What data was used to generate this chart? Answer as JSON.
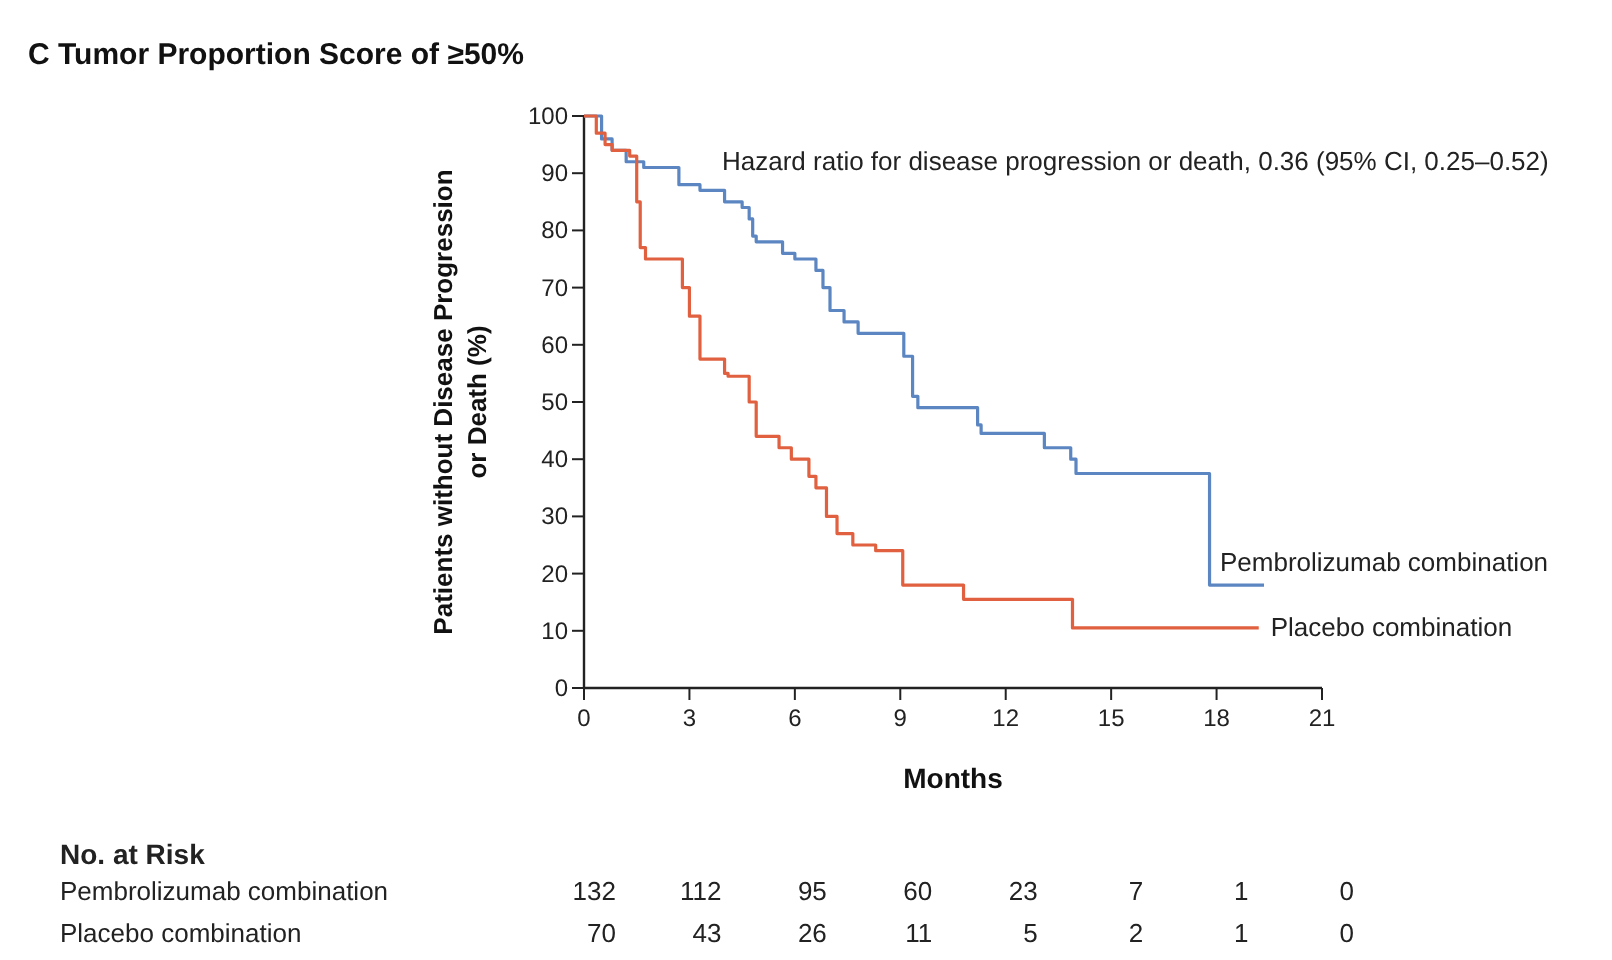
{
  "chart_data": {
    "type": "step",
    "title": "C  Tumor Proportion Score of ≥50%",
    "xlabel": "Months",
    "ylabel": "Patients without Disease Progression\nor Death (%)",
    "xlim": [
      0,
      21
    ],
    "xticks": [
      0,
      3,
      6,
      9,
      12,
      15,
      18,
      21
    ],
    "ylim": [
      0,
      100
    ],
    "yticks": [
      0,
      10,
      20,
      30,
      40,
      50,
      60,
      70,
      80,
      90,
      100
    ],
    "grid": false,
    "series": [
      {
        "name": "Pembrolizumab combination",
        "color": "#5b86c2",
        "x": [
          0,
          0.5,
          0.8,
          1.2,
          1.7,
          2.7,
          3.3,
          4.0,
          4.5,
          4.7,
          4.8,
          4.9,
          5.65,
          6.0,
          6.6,
          6.8,
          7.0,
          7.4,
          7.8,
          9.1,
          9.35,
          9.5,
          11.2,
          11.3,
          13.1,
          13.85,
          14.0,
          17.8,
          19.35
        ],
        "values": [
          100,
          96,
          94,
          92,
          91,
          88,
          87,
          85,
          84,
          82,
          79,
          78,
          76,
          75,
          73,
          70,
          66,
          64,
          62,
          58,
          51,
          49,
          46,
          44.5,
          42,
          40,
          37.5,
          18,
          18
        ]
      },
      {
        "name": "Placebo combination",
        "color": "#e0603f",
        "x": [
          0,
          0.35,
          0.6,
          0.8,
          1.3,
          1.5,
          1.6,
          1.75,
          2.8,
          3.0,
          3.3,
          4.0,
          4.1,
          4.7,
          4.9,
          5.55,
          5.9,
          6.4,
          6.6,
          6.9,
          7.2,
          7.65,
          8.3,
          9.07,
          10.8,
          13.9,
          19.2
        ],
        "values": [
          100,
          97,
          95,
          94,
          93,
          85,
          77,
          75,
          70,
          65,
          57.5,
          55,
          54.5,
          50,
          44,
          42,
          40,
          37,
          35,
          30,
          27,
          25,
          24,
          18,
          15.5,
          10.5,
          10.5
        ]
      }
    ],
    "annotations": [
      "Hazard ratio for disease progression or death, 0.36 (95% CI, 0.25–0.52)",
      "No. at Risk",
      "Pembrolizumab combination",
      "132",
      "112",
      "95",
      "60",
      "23",
      "7",
      "1",
      "0",
      "Placebo combination",
      "70",
      "43",
      "26",
      "11",
      "5",
      "2",
      "1",
      "0"
    ]
  }
}
